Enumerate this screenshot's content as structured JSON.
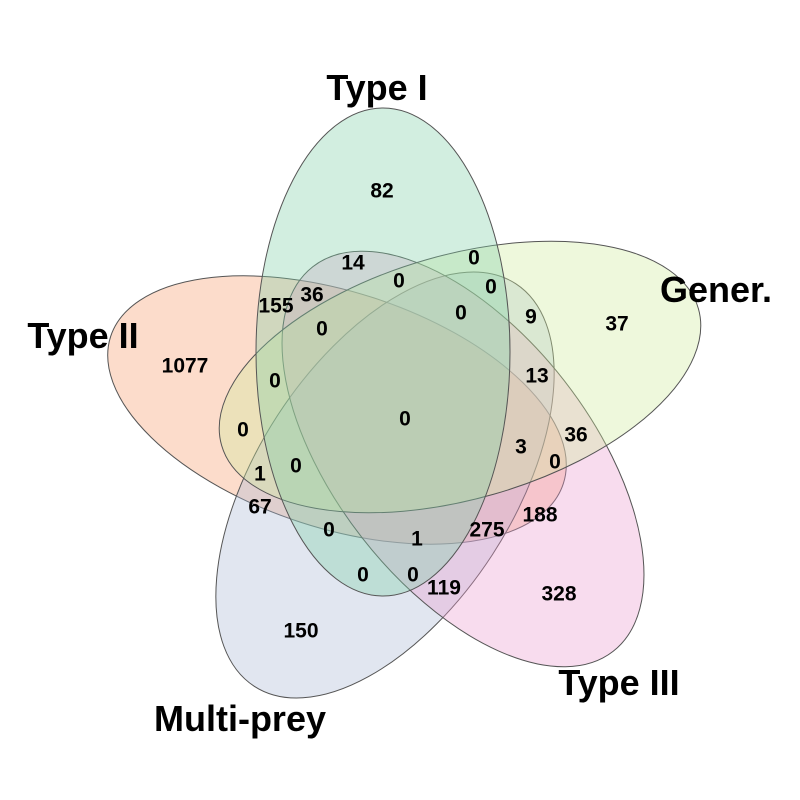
{
  "venn": {
    "sets": [
      {
        "id": "type1",
        "label": "Type I",
        "color": "#7fcfa5"
      },
      {
        "id": "type2",
        "label": "Type II",
        "color": "#f59a6a"
      },
      {
        "id": "multiprey",
        "label": "Multi-prey",
        "color": "#a9b6d5"
      },
      {
        "id": "type3",
        "label": "Type III",
        "color": "#ec9bcf"
      },
      {
        "id": "gener",
        "label": "Gener.",
        "color": "#cdeb9a"
      }
    ],
    "regions": [
      {
        "id": "type1-only",
        "value": "82"
      },
      {
        "id": "gener-only",
        "value": "37"
      },
      {
        "id": "type3-only",
        "value": "328"
      },
      {
        "id": "multiprey-only",
        "value": "150"
      },
      {
        "id": "type2-only",
        "value": "1077"
      },
      {
        "id": "r-14",
        "value": "14"
      },
      {
        "id": "r-0-a",
        "value": "0"
      },
      {
        "id": "r-0-b",
        "value": "0"
      },
      {
        "id": "r-0-c",
        "value": "0"
      },
      {
        "id": "r-0-d",
        "value": "0"
      },
      {
        "id": "r-9",
        "value": "9"
      },
      {
        "id": "r-155",
        "value": "155"
      },
      {
        "id": "r-36-a",
        "value": "36"
      },
      {
        "id": "r-0-e",
        "value": "0"
      },
      {
        "id": "r-13",
        "value": "13"
      },
      {
        "id": "r-0-f",
        "value": "0"
      },
      {
        "id": "r-0-center",
        "value": "0"
      },
      {
        "id": "r-0-g",
        "value": "0"
      },
      {
        "id": "r-36-b",
        "value": "36"
      },
      {
        "id": "r-3",
        "value": "3"
      },
      {
        "id": "r-0-h",
        "value": "0"
      },
      {
        "id": "r-1-a",
        "value": "1"
      },
      {
        "id": "r-0-i",
        "value": "0"
      },
      {
        "id": "r-67",
        "value": "67"
      },
      {
        "id": "r-188",
        "value": "188"
      },
      {
        "id": "r-0-j",
        "value": "0"
      },
      {
        "id": "r-1-b",
        "value": "1"
      },
      {
        "id": "r-275",
        "value": "275"
      },
      {
        "id": "r-0-k",
        "value": "0"
      },
      {
        "id": "r-0-l",
        "value": "0"
      },
      {
        "id": "r-119",
        "value": "119"
      }
    ]
  }
}
